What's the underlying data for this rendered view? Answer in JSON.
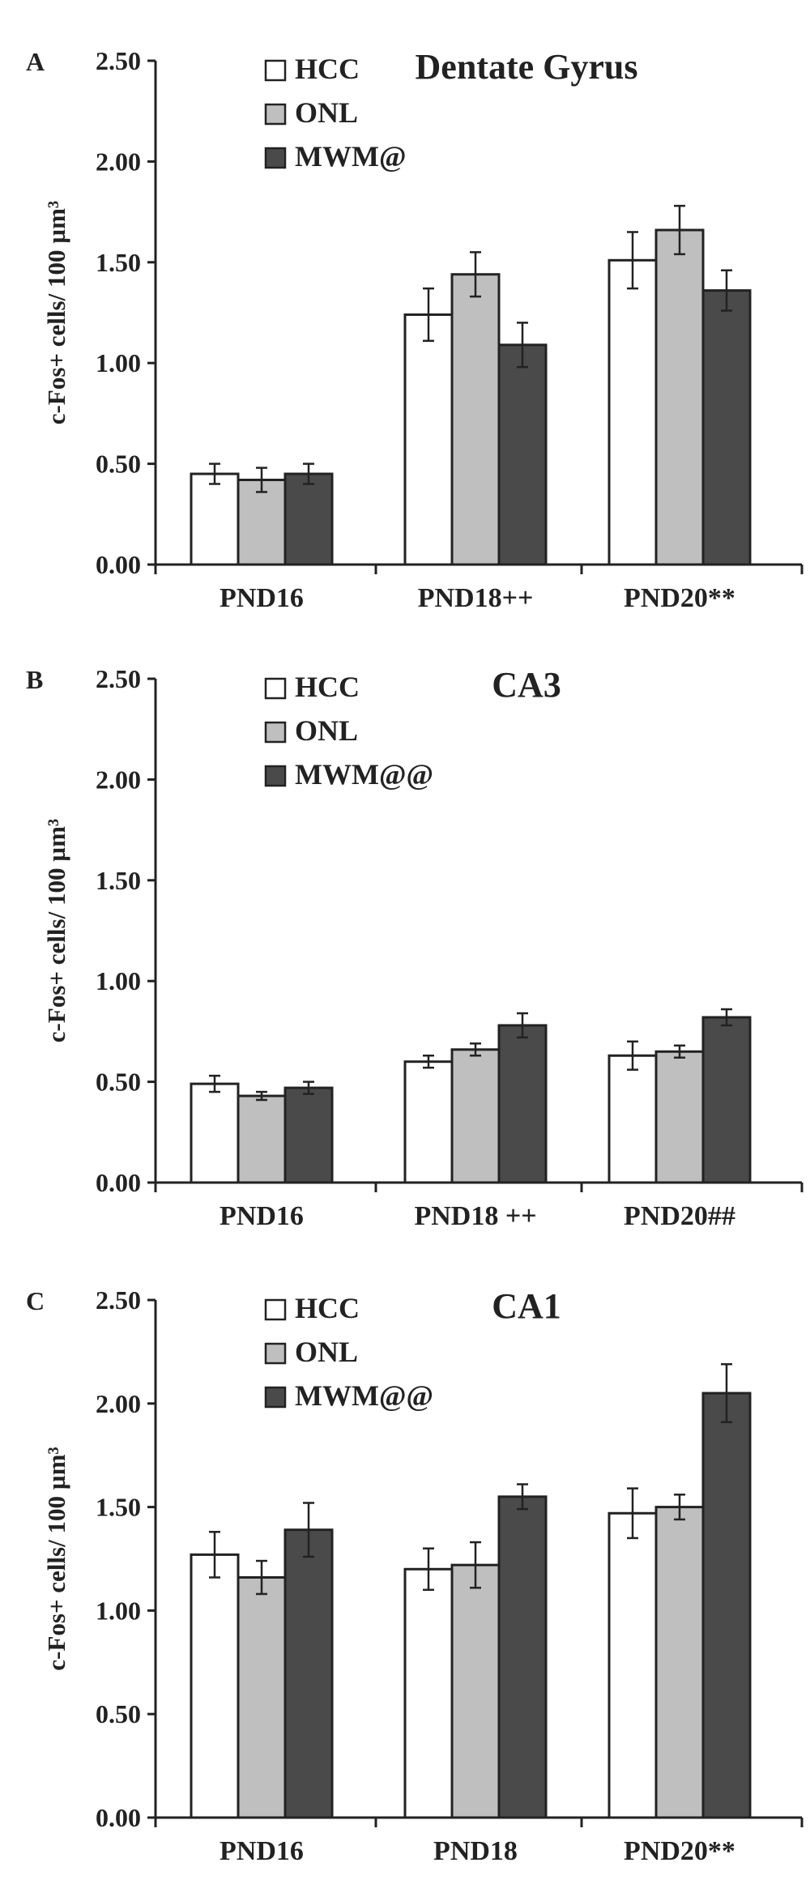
{
  "colors": {
    "axis": "#222222",
    "bar_outline": "#222222",
    "error_bar": "#222222"
  },
  "chart_data": [
    {
      "type": "bar",
      "panel_label": "A",
      "title": "Dentate Gyrus",
      "ylabel": "c-Fos+ cells/ 100 µm³",
      "xlabel": "",
      "ylim": [
        0,
        2.5
      ],
      "yticks": [
        "0.00",
        "0.50",
        "1.00",
        "1.50",
        "2.00",
        "2.50"
      ],
      "categories": [
        "PND16",
        "PND18++",
        "PND20**"
      ],
      "legend_position": "top-left",
      "series": [
        {
          "name": "HCC",
          "color": "#ffffff",
          "values": [
            0.45,
            1.24,
            1.51
          ],
          "errors": [
            0.05,
            0.13,
            0.14
          ]
        },
        {
          "name": "ONL",
          "color": "#bfbfbf",
          "values": [
            0.42,
            1.44,
            1.66
          ],
          "errors": [
            0.06,
            0.11,
            0.12
          ]
        },
        {
          "name": "MWM@",
          "color": "#4a4a4a",
          "values": [
            0.45,
            1.09,
            1.36
          ],
          "errors": [
            0.05,
            0.11,
            0.1
          ]
        }
      ]
    },
    {
      "type": "bar",
      "panel_label": "B",
      "title": "CA3",
      "ylabel": "c-Fos+ cells/ 100 µm³",
      "xlabel": "",
      "ylim": [
        0,
        2.5
      ],
      "yticks": [
        "0.00",
        "0.50",
        "1.00",
        "1.50",
        "2.00",
        "2.50"
      ],
      "categories": [
        "PND16",
        "PND18 ++",
        "PND20##"
      ],
      "legend_position": "top-left",
      "series": [
        {
          "name": "HCC",
          "color": "#ffffff",
          "values": [
            0.49,
            0.6,
            0.63
          ],
          "errors": [
            0.04,
            0.03,
            0.07
          ]
        },
        {
          "name": "ONL",
          "color": "#bfbfbf",
          "values": [
            0.43,
            0.66,
            0.65
          ],
          "errors": [
            0.02,
            0.03,
            0.03
          ]
        },
        {
          "name": "MWM@@",
          "color": "#4a4a4a",
          "values": [
            0.47,
            0.78,
            0.82
          ],
          "errors": [
            0.03,
            0.06,
            0.04
          ]
        }
      ]
    },
    {
      "type": "bar",
      "panel_label": "C",
      "title": "CA1",
      "ylabel": "c-Fos+ cells/ 100 µm³",
      "xlabel": "",
      "ylim": [
        0,
        2.5
      ],
      "yticks": [
        "0.00",
        "0.50",
        "1.00",
        "1.50",
        "2.00",
        "2.50"
      ],
      "categories": [
        "PND16",
        "PND18",
        "PND20**"
      ],
      "legend_position": "top-left",
      "series": [
        {
          "name": "HCC",
          "color": "#ffffff",
          "values": [
            1.27,
            1.2,
            1.47
          ],
          "errors": [
            0.11,
            0.1,
            0.12
          ]
        },
        {
          "name": "ONL",
          "color": "#bfbfbf",
          "values": [
            1.16,
            1.22,
            1.5
          ],
          "errors": [
            0.08,
            0.11,
            0.06
          ]
        },
        {
          "name": "MWM@@",
          "color": "#4a4a4a",
          "values": [
            1.39,
            1.55,
            2.05
          ],
          "errors": [
            0.13,
            0.06,
            0.14
          ]
        }
      ]
    }
  ]
}
